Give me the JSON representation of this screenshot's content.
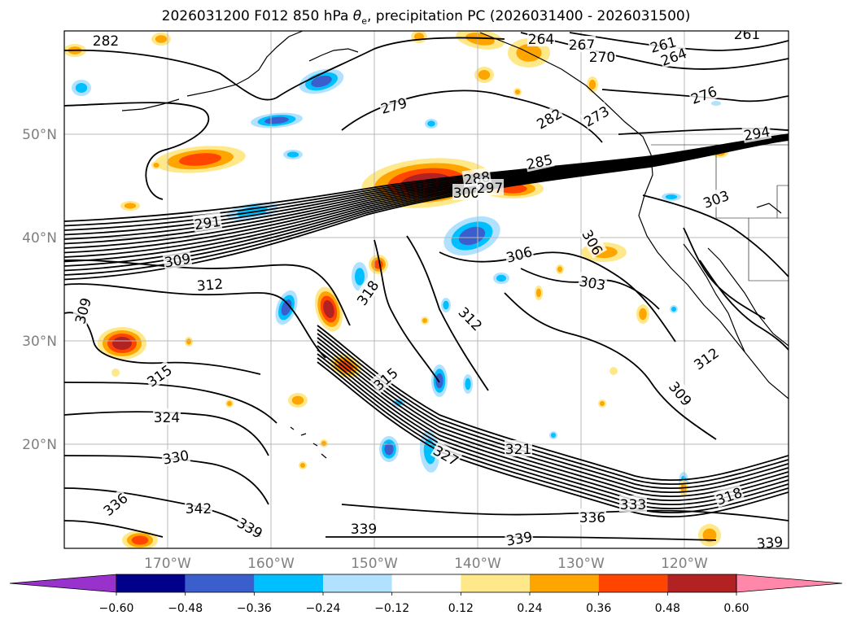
{
  "title": {
    "prefix": "2026031200 F012 850 hPa ",
    "theta": "θ",
    "sub": "e",
    "suffix": ", precipitation PC (2026031400 - 2026031500)"
  },
  "map": {
    "lat_labels": [
      "50°N",
      "40°N",
      "30°N",
      "20°N"
    ],
    "lon_labels": [
      "170°W",
      "160°W",
      "150°W",
      "140°W",
      "130°W",
      "120°W"
    ],
    "contour_labels": [
      "282",
      "264",
      "267",
      "270",
      "261",
      "261",
      "264",
      "276",
      "279",
      "282",
      "273",
      "294",
      "285",
      "288",
      "300",
      "297",
      "291",
      "303",
      "306",
      "309",
      "312",
      "309",
      "318",
      "306",
      "303",
      "312",
      "315",
      "315",
      "324",
      "312",
      "309",
      "330",
      "321",
      "327",
      "336",
      "342",
      "339",
      "339",
      "339",
      "336",
      "333",
      "318",
      "339"
    ]
  },
  "colorbar": {
    "ticks": [
      "−0.60",
      "−0.48",
      "−0.36",
      "−0.24",
      "−0.12",
      "0.12",
      "0.24",
      "0.36",
      "0.48",
      "0.60"
    ],
    "colors": [
      "#9932cc",
      "#00008b",
      "#3a5fcd",
      "#00bfff",
      "#b0e2ff",
      "#ffffff",
      "#ffe88a",
      "#ffa500",
      "#ff4500",
      "#b22222",
      "#ff88aa"
    ]
  },
  "palette": {
    "neg_strong": "#3a5fcd",
    "neg_mid": "#00bfff",
    "neg_weak": "#b0e2ff",
    "pos_weak": "#ffe88a",
    "pos_mid": "#ffa500",
    "pos_strong": "#ff4500",
    "pos_max": "#b22222"
  }
}
